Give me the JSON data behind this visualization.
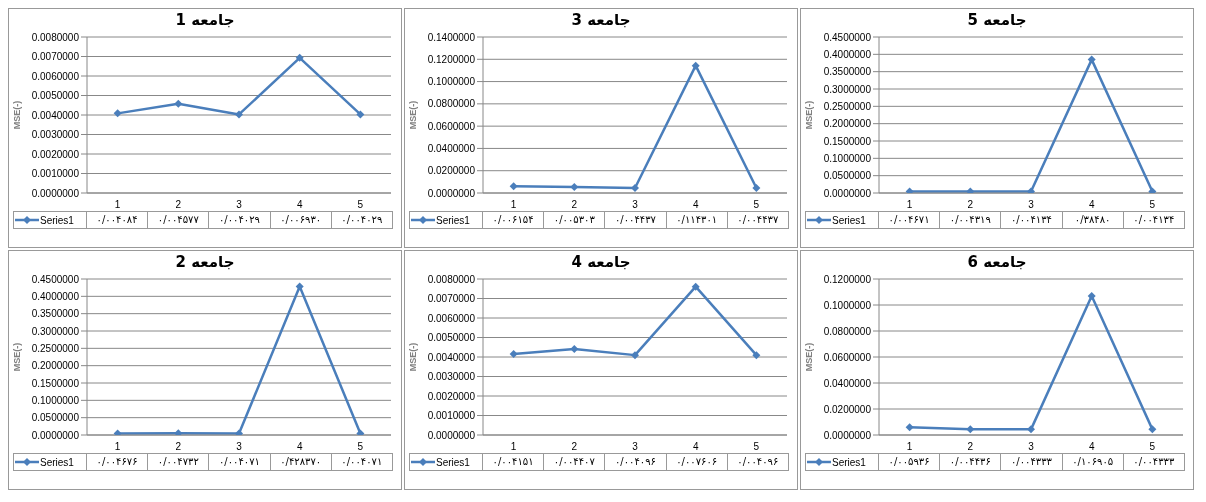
{
  "chart_data": [
    {
      "type": "line",
      "title": "جامعه 1",
      "ylabel": "MSE(-)",
      "categories": [
        "1",
        "2",
        "3",
        "4",
        "5"
      ],
      "ylim": [
        0,
        0.008
      ],
      "yticks": [
        {
          "value": 0,
          "label": "0.0000000"
        },
        {
          "value": 0.001,
          "label": "0.0010000"
        },
        {
          "value": 0.002,
          "label": "0.0020000"
        },
        {
          "value": 0.003,
          "label": "0.0030000"
        },
        {
          "value": 0.004,
          "label": "0.0040000"
        },
        {
          "value": 0.005,
          "label": "0.0050000"
        },
        {
          "value": 0.006,
          "label": "0.0060000"
        },
        {
          "value": 0.007,
          "label": "0.0070000"
        },
        {
          "value": 0.008,
          "label": "0.0080000"
        }
      ],
      "grid": "y",
      "legend": "bottom",
      "marker": "diamond",
      "line_style": "solid",
      "series": [
        {
          "name": "Series1",
          "color": "#4a7ebb",
          "values": [
            0.004084,
            0.004577,
            0.004029,
            0.00693,
            0.004029
          ],
          "value_labels": [
            "۰/۰۰۴۰۸۴",
            "۰/۰۰۴۵۷۷",
            "۰/۰۰۴۰۲۹",
            "۰/۰۰۶۹۳۰",
            "۰/۰۰۴۰۲۹"
          ]
        }
      ]
    },
    {
      "type": "line",
      "title": "جامعه 3",
      "ylabel": "MSE(-)",
      "categories": [
        "1",
        "2",
        "3",
        "4",
        "5"
      ],
      "ylim": [
        0,
        0.14
      ],
      "yticks": [
        {
          "value": 0,
          "label": "0.0000000"
        },
        {
          "value": 0.02,
          "label": "0.0200000"
        },
        {
          "value": 0.04,
          "label": "0.0400000"
        },
        {
          "value": 0.06,
          "label": "0.0600000"
        },
        {
          "value": 0.08,
          "label": "0.0800000"
        },
        {
          "value": 0.1,
          "label": "0.1000000"
        },
        {
          "value": 0.12,
          "label": "0.1200000"
        },
        {
          "value": 0.14,
          "label": "0.1400000"
        }
      ],
      "grid": "y",
      "legend": "bottom",
      "marker": "diamond",
      "line_style": "solid",
      "series": [
        {
          "name": "Series1",
          "color": "#4a7ebb",
          "values": [
            0.006154,
            0.005303,
            0.004437,
            0.114301,
            0.004437
          ],
          "value_labels": [
            "۰/۰۰۶۱۵۴",
            "۰/۰۰۵۳۰۳",
            "۰/۰۰۴۴۳۷",
            "۰/۱۱۴۳۰۱",
            "۰/۰۰۴۴۳۷"
          ]
        }
      ]
    },
    {
      "type": "line",
      "title": "جامعه 5",
      "ylabel": "MSE(-)",
      "categories": [
        "1",
        "2",
        "3",
        "4",
        "5"
      ],
      "ylim": [
        0,
        0.45
      ],
      "yticks": [
        {
          "value": 0,
          "label": "0.0000000"
        },
        {
          "value": 0.05,
          "label": "0.0500000"
        },
        {
          "value": 0.1,
          "label": "0.1000000"
        },
        {
          "value": 0.15,
          "label": "0.1500000"
        },
        {
          "value": 0.2,
          "label": "0.2000000"
        },
        {
          "value": 0.25,
          "label": "0.2500000"
        },
        {
          "value": 0.3,
          "label": "0.3000000"
        },
        {
          "value": 0.35,
          "label": "0.3500000"
        },
        {
          "value": 0.4,
          "label": "0.4000000"
        },
        {
          "value": 0.45,
          "label": "0.4500000"
        }
      ],
      "grid": "y",
      "legend": "bottom",
      "marker": "diamond",
      "line_style": "solid",
      "series": [
        {
          "name": "Series1",
          "color": "#4a7ebb",
          "values": [
            0.004671,
            0.004319,
            0.004134,
            0.3848,
            0.004134
          ],
          "value_labels": [
            "۰/۰۰۴۶۷۱",
            "۰/۰۰۴۳۱۹",
            "۰/۰۰۴۱۳۴",
            "۰/۳۸۴۸۰",
            "۰/۰۰۴۱۳۴"
          ]
        }
      ]
    },
    {
      "type": "line",
      "title": "جامعه 2",
      "ylabel": "MSE(-)",
      "categories": [
        "1",
        "2",
        "3",
        "4",
        "5"
      ],
      "ylim": [
        0,
        0.45
      ],
      "yticks": [
        {
          "value": 0,
          "label": "0.0000000"
        },
        {
          "value": 0.05,
          "label": "0.0500000"
        },
        {
          "value": 0.1,
          "label": "0.1000000"
        },
        {
          "value": 0.15,
          "label": "0.1500000"
        },
        {
          "value": 0.2,
          "label": "0.2000000"
        },
        {
          "value": 0.25,
          "label": "0.2500000"
        },
        {
          "value": 0.3,
          "label": "0.3000000"
        },
        {
          "value": 0.35,
          "label": "0.3500000"
        },
        {
          "value": 0.4,
          "label": "0.4000000"
        },
        {
          "value": 0.45,
          "label": "0.4500000"
        }
      ],
      "grid": "y",
      "legend": "bottom",
      "marker": "diamond",
      "line_style": "solid",
      "series": [
        {
          "name": "Series1",
          "color": "#4a7ebb",
          "values": [
            0.004676,
            0.004732,
            0.004071,
            0.42837,
            0.004071
          ],
          "value_labels": [
            "۰/۰۰۴۶۷۶",
            "۰/۰۰۴۷۳۲",
            "۰/۰۰۴۰۷۱",
            "۰/۴۲۸۳۷۰",
            "۰/۰۰۴۰۷۱"
          ]
        }
      ]
    },
    {
      "type": "line",
      "title": "جامعه 4",
      "ylabel": "MSE(-)",
      "categories": [
        "1",
        "2",
        "3",
        "4",
        "5"
      ],
      "ylim": [
        0,
        0.008
      ],
      "yticks": [
        {
          "value": 0,
          "label": "0.0000000"
        },
        {
          "value": 0.001,
          "label": "0.0010000"
        },
        {
          "value": 0.002,
          "label": "0.0020000"
        },
        {
          "value": 0.003,
          "label": "0.0030000"
        },
        {
          "value": 0.004,
          "label": "0.0040000"
        },
        {
          "value": 0.005,
          "label": "0.0050000"
        },
        {
          "value": 0.006,
          "label": "0.0060000"
        },
        {
          "value": 0.007,
          "label": "0.0070000"
        },
        {
          "value": 0.008,
          "label": "0.0080000"
        }
      ],
      "grid": "y",
      "legend": "bottom",
      "marker": "diamond",
      "line_style": "solid",
      "series": [
        {
          "name": "Series1",
          "color": "#4a7ebb",
          "values": [
            0.004151,
            0.004407,
            0.004096,
            0.007606,
            0.004096
          ],
          "value_labels": [
            "۰/۰۰۴۱۵۱",
            "۰/۰۰۴۴۰۷",
            "۰/۰۰۴۰۹۶",
            "۰/۰۰۷۶۰۶",
            "۰/۰۰۴۰۹۶"
          ]
        }
      ]
    },
    {
      "type": "line",
      "title": "جامعه 6",
      "ylabel": "MSE(-)",
      "categories": [
        "1",
        "2",
        "3",
        "4",
        "5"
      ],
      "ylim": [
        0,
        0.12
      ],
      "yticks": [
        {
          "value": 0,
          "label": "0.0000000"
        },
        {
          "value": 0.02,
          "label": "0.0200000"
        },
        {
          "value": 0.04,
          "label": "0.0400000"
        },
        {
          "value": 0.06,
          "label": "0.0600000"
        },
        {
          "value": 0.08,
          "label": "0.0800000"
        },
        {
          "value": 0.1,
          "label": "0.1000000"
        },
        {
          "value": 0.12,
          "label": "0.1200000"
        }
      ],
      "grid": "y",
      "legend": "bottom",
      "marker": "diamond",
      "line_style": "solid",
      "series": [
        {
          "name": "Series1",
          "color": "#4a7ebb",
          "values": [
            0.005936,
            0.004436,
            0.004333,
            0.106905,
            0.004333
          ],
          "value_labels": [
            "۰/۰۰۵۹۳۶",
            "۰/۰۰۴۴۳۶",
            "۰/۰۰۴۳۳۳",
            "۰/۱۰۶۹۰۵",
            "۰/۰۰۴۳۳۳"
          ]
        }
      ]
    }
  ]
}
